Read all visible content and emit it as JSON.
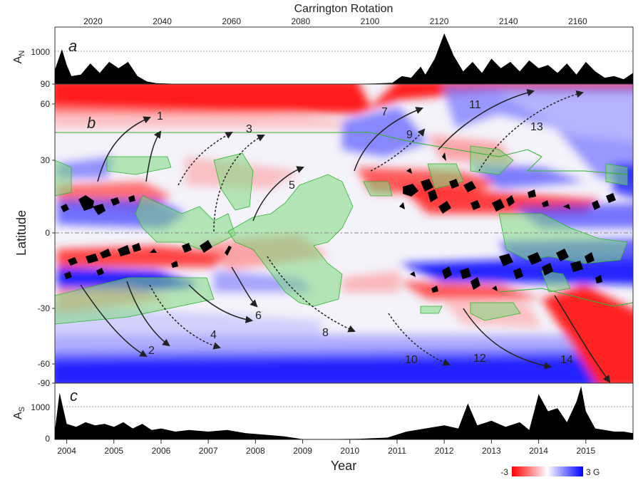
{
  "chart_data": [
    {
      "panel_label": "a",
      "type": "area",
      "top_axis_title": "Carrington Rotation",
      "top_axis_ticks": [
        "2020",
        "2040",
        "2060",
        "2080",
        "2100",
        "2120",
        "2140",
        "2160"
      ],
      "top_axis_range": [
        2009,
        2176
      ],
      "ylabel_main": "A",
      "ylabel_sub": "N",
      "ylim": [
        0,
        1800
      ],
      "y_ticks": [
        "1000"
      ],
      "x_range": [
        2003.75,
        2016.0
      ],
      "x": [
        2003.75,
        2003.9,
        2004.0,
        2004.1,
        2004.3,
        2004.5,
        2004.7,
        2004.9,
        2005.1,
        2005.3,
        2005.5,
        2005.7,
        2005.9,
        2006.3,
        2007.0,
        2008.0,
        2009.0,
        2009.5,
        2010.0,
        2010.5,
        2010.9,
        2011.1,
        2011.3,
        2011.5,
        2011.6,
        2011.8,
        2012.0,
        2012.2,
        2012.4,
        2012.6,
        2012.8,
        2013.0,
        2013.2,
        2013.4,
        2013.6,
        2013.8,
        2014.0,
        2014.2,
        2014.4,
        2014.6,
        2014.8,
        2015.0,
        2015.2,
        2015.4,
        2015.6,
        2015.8,
        2016.0
      ],
      "values": [
        450,
        1100,
        600,
        250,
        300,
        650,
        350,
        700,
        500,
        700,
        250,
        80,
        30,
        10,
        5,
        5,
        5,
        5,
        5,
        15,
        40,
        250,
        200,
        550,
        300,
        800,
        1600,
        900,
        400,
        700,
        350,
        800,
        500,
        700,
        400,
        750,
        500,
        600,
        350,
        650,
        300,
        700,
        400,
        200,
        250,
        150,
        350
      ]
    },
    {
      "panel_label": "b",
      "type": "heatmap",
      "ylabel": "Latitude",
      "y_ticks": [
        "90",
        "60",
        "30",
        "0",
        "-30",
        "-60",
        "-90"
      ],
      "ylim": [
        -90,
        90
      ],
      "color_scale": {
        "min_label": "-3",
        "max_label": "3 G",
        "min_color": "#ff0000",
        "mid_color": "#ffffff",
        "max_color": "#0000ff"
      },
      "annotations": [
        "1",
        "2",
        "3",
        "4",
        "5",
        "6",
        "7",
        "8",
        "9",
        "10",
        "11",
        "12",
        "13",
        "14"
      ]
    },
    {
      "panel_label": "c",
      "type": "area",
      "ylabel_main": "A",
      "ylabel_sub": "S",
      "ylim": [
        0,
        1800
      ],
      "y_ticks": [
        "1000",
        "0"
      ],
      "xlabel": "Year",
      "x_ticks": [
        "2004",
        "2005",
        "2006",
        "2007",
        "2008",
        "2009",
        "2010",
        "2011",
        "2012",
        "2013",
        "2014",
        "2015"
      ],
      "x": [
        2003.75,
        2003.85,
        2004.0,
        2004.2,
        2004.4,
        2004.6,
        2004.8,
        2005.0,
        2005.2,
        2005.4,
        2005.6,
        2005.8,
        2006.0,
        2006.3,
        2006.6,
        2007.0,
        2007.4,
        2007.8,
        2008.2,
        2008.6,
        2009.0,
        2009.6,
        2010.2,
        2010.8,
        2011.2,
        2011.6,
        2012.0,
        2012.3,
        2012.5,
        2012.7,
        2013.0,
        2013.3,
        2013.6,
        2013.8,
        2014.0,
        2014.2,
        2014.4,
        2014.6,
        2014.8,
        2014.9,
        2015.0,
        2015.2,
        2015.4,
        2015.6,
        2015.8,
        2016.0
      ],
      "values": [
        300,
        1500,
        500,
        400,
        550,
        450,
        500,
        400,
        550,
        350,
        500,
        300,
        350,
        250,
        300,
        250,
        300,
        200,
        150,
        100,
        10,
        10,
        20,
        60,
        250,
        350,
        450,
        350,
        1150,
        450,
        600,
        400,
        550,
        300,
        1450,
        900,
        1000,
        550,
        1200,
        1700,
        900,
        350,
        300,
        250,
        250,
        200
      ]
    }
  ]
}
